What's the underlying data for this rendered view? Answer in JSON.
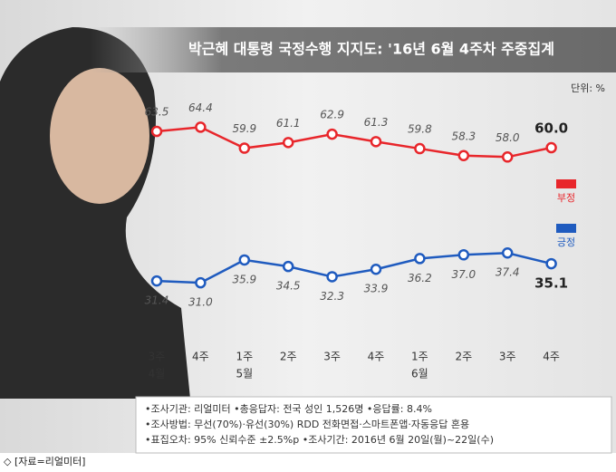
{
  "chart_data": {
    "type": "line",
    "title": "박근혜 대통령 국정수행 지지도: '16년 6월 4주차 주중집계",
    "unit": "단위: %",
    "categories": [
      "3주",
      "4주",
      "1주",
      "2주",
      "3주",
      "4주",
      "1주",
      "2주",
      "3주",
      "4주"
    ],
    "month_labels": [
      "4월",
      null,
      "5월",
      null,
      null,
      null,
      "6월",
      null,
      null,
      null
    ],
    "series": [
      {
        "name": "부정",
        "color": "#e8262b",
        "values": [
          63.5,
          64.4,
          59.9,
          61.1,
          62.9,
          61.3,
          59.8,
          58.3,
          58.0,
          60.0
        ],
        "value_labels": [
          "63.5",
          "64.4",
          "59.9",
          "61.1",
          "62.9",
          "61.3",
          "59.8",
          "58.3",
          "58.0",
          "60.0"
        ]
      },
      {
        "name": "긍정",
        "color": "#1f5bbf",
        "values": [
          31.4,
          31.0,
          35.9,
          34.5,
          32.3,
          33.9,
          36.2,
          37.0,
          37.4,
          35.1
        ],
        "value_labels": [
          "31.4",
          "31.0",
          "35.9",
          "34.5",
          "32.3",
          "33.9",
          "36.2",
          "37.0",
          "37.4",
          "35.1"
        ]
      }
    ],
    "ylim": [
      25,
      70
    ],
    "notes": [
      "•조사기관: 리얼미터 •총응답자: 전국 성인 1,526명 •응답률: 8.4%",
      "•조사방법: 무선(70%)·유선(30%) RDD 전화면접·스마트폰앱·자동응답 혼용",
      "•표집오차: 95% 신뢰수준 ±2.5%p •조사기간: 2016년 6월 20일(월)~22일(수)"
    ],
    "source": "◇ [자료=리얼미터]"
  }
}
